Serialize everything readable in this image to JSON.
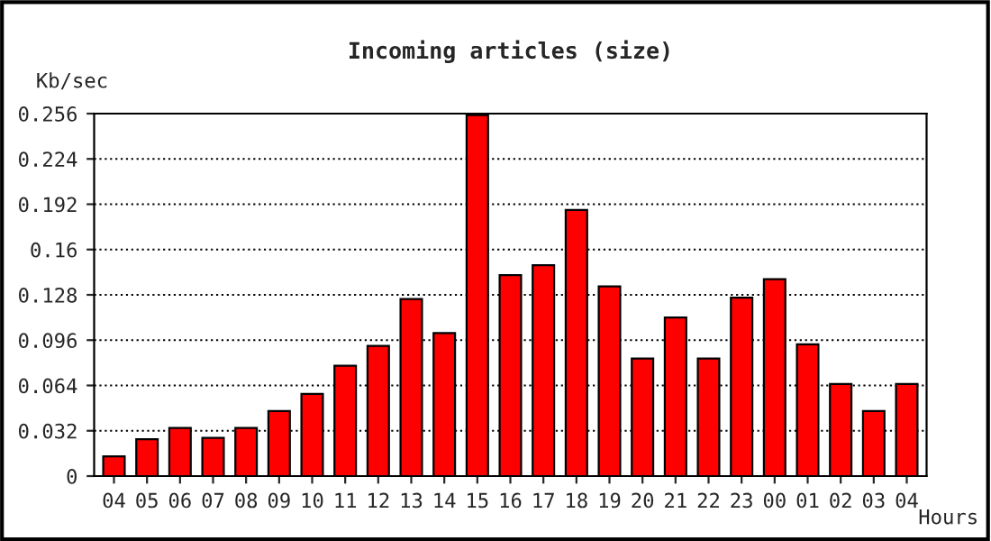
{
  "chart_data": {
    "type": "bar",
    "title": "Incoming articles (size)",
    "ylabel": "Kb/sec",
    "xlabel": "Hours",
    "categories": [
      "04",
      "05",
      "06",
      "07",
      "08",
      "09",
      "10",
      "11",
      "12",
      "13",
      "14",
      "15",
      "16",
      "17",
      "18",
      "19",
      "20",
      "21",
      "22",
      "23",
      "00",
      "01",
      "02",
      "03",
      "04"
    ],
    "values": [
      0.014,
      0.026,
      0.034,
      0.027,
      0.034,
      0.046,
      0.058,
      0.078,
      0.092,
      0.125,
      0.101,
      0.255,
      0.142,
      0.149,
      0.188,
      0.134,
      0.083,
      0.112,
      0.083,
      0.126,
      0.139,
      0.093,
      0.065,
      0.046,
      0.065
    ],
    "color": "#ff0000",
    "ylim": [
      0,
      0.256
    ],
    "yticks": [
      0,
      0.032,
      0.064,
      0.096,
      0.128,
      0.16,
      0.192,
      0.224,
      0.256
    ],
    "grid": "y",
    "line_style": "dotted"
  }
}
